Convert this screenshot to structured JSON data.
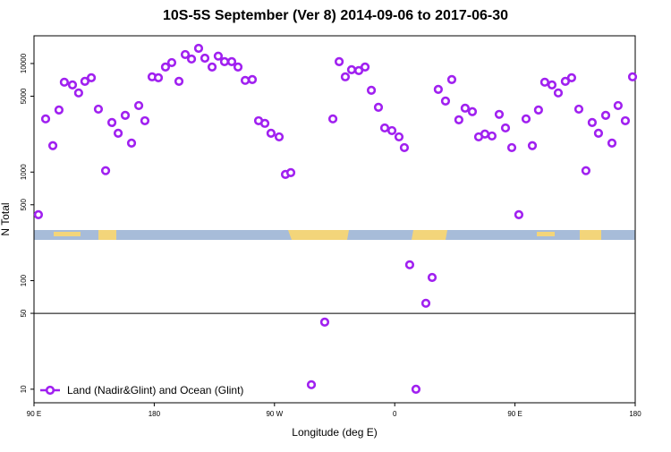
{
  "chart_data": {
    "type": "scatter",
    "title": "10S-5S September (Ver 8)   2014-09-06 to 2017-06-30",
    "x_label": "Longitude (deg E)",
    "y_label": "N Total",
    "log_y": true,
    "xlim": [
      90,
      540
    ],
    "ylim": [
      7.5,
      18000
    ],
    "xticks": [
      {
        "value": 90,
        "label": "90 E"
      },
      180,
      {
        "value": 270,
        "label": "90 W"
      },
      {
        "value": 360,
        "label": "0"
      },
      {
        "value": 450,
        "label": "90 E"
      },
      180.0
    ],
    "yticks": [
      10,
      50,
      100,
      500,
      1000,
      5000,
      10000
    ],
    "reference_line": 50,
    "legend": "bottom-left",
    "series": [
      {
        "name": "Land (Nadir&Glint) and Ocean (Glint)",
        "color": "#a020f0",
        "x": [
          93.3,
          98.7,
          104.1,
          108.7,
          112.7,
          118.8,
          123.4,
          128.1,
          132.9,
          138.2,
          143.6,
          148.3,
          153,
          158.3,
          163,
          168.4,
          173,
          178.4,
          183.1,
          188.4,
          193.1,
          198.5,
          203.2,
          207.9,
          213.2,
          217.9,
          223.3,
          227.9,
          232.6,
          238,
          242.7,
          248.1,
          253.4,
          258.1,
          262.8,
          267.4,
          273.5,
          278.2,
          282.2,
          297.6,
          307.6,
          313.7,
          318.4,
          323,
          327.7,
          333.1,
          337.8,
          342.5,
          347.8,
          352.5,
          357.9,
          363.2,
          367.2,
          371.2,
          375.9,
          383.3,
          388,
          392.6,
          398,
          402.7,
          408,
          412.7,
          418.1,
          422.8,
          427.5,
          432.8,
          438.2,
          442.9,
          447.6,
          452.9,
          458.3,
          463,
          467.6,
          472.3,
          477.7,
          482.4,
          487.7,
          492.4,
          497.8,
          503.1,
          507.8,
          512.5,
          517.9,
          522.6,
          527.2,
          532.6,
          538
        ],
        "values": [
          405,
          3090,
          1750,
          3730,
          6730,
          6350,
          5360,
          6850,
          7390,
          3800,
          1030,
          2860,
          2280,
          3330,
          1850,
          4100,
          2970,
          7540,
          7390,
          9290,
          10200,
          6850,
          12100,
          11000,
          13800,
          11200,
          9290,
          11700,
          10400,
          10400,
          9290,
          6990,
          7120,
          2970,
          2810,
          2280,
          2110,
          952,
          989,
          11.0,
          41.5,
          3090,
          10400,
          7540,
          8770,
          8610,
          9290,
          5670,
          3950,
          2550,
          2410,
          2110,
          1680,
          140,
          10,
          61.9,
          107,
          5780,
          4510,
          7120,
          3030,
          3880,
          3600,
          2110,
          2240,
          2150,
          3400,
          2550,
          1680,
          405,
          3090,
          1750,
          3730,
          6730,
          6350,
          5360,
          6850,
          7390,
          3800,
          1030,
          2860,
          2280,
          3330,
          1850,
          4100,
          2970,
          7540
        ]
      }
    ]
  }
}
